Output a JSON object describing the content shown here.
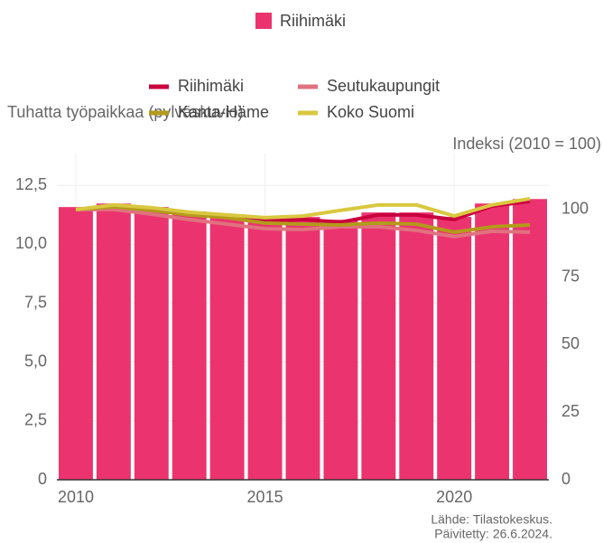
{
  "chart_data": {
    "type": "combo",
    "y_label": "Tuhatta työpaikkaa (pylväskuvio)",
    "y2_label": "Indeksi (2010 = 100)",
    "source": "Lähde: Tilastokeskus.",
    "updated": "Päivitetty: 26.6.2024.",
    "x": [
      2010,
      2011,
      2012,
      2013,
      2014,
      2015,
      2016,
      2017,
      2018,
      2019,
      2020,
      2021,
      2022
    ],
    "xlim": [
      2009.5,
      2022.5
    ],
    "xticks": [
      2010,
      2015,
      2020
    ],
    "ylim": [
      0,
      13.85
    ],
    "yticks": [
      0,
      {
        "value": 2.5,
        "label": "2,5"
      },
      {
        "value": 5,
        "label": "5,0"
      },
      {
        "value": 7.5,
        "label": "7,5"
      },
      {
        "value": 10,
        "label": "10,0"
      },
      {
        "value": 12.5,
        "label": "12,5"
      }
    ],
    "y2lim": [
      0,
      120.7
    ],
    "y2ticks": [
      0,
      25,
      50,
      75,
      100
    ],
    "grid": true,
    "series": [
      {
        "name": "Riihimäki",
        "type": "bar",
        "color": "#eb346f",
        "values": [
          11.58,
          11.73,
          11.58,
          11.39,
          11.27,
          11.08,
          11.16,
          11.04,
          11.35,
          11.35,
          11.16,
          11.73,
          11.92
        ]
      },
      {
        "name": "Riihimäki",
        "type": "line",
        "axis": "y2",
        "color": "#c9003e",
        "values": [
          100,
          101.3,
          100,
          98.3,
          97.3,
          95.7,
          96.3,
          95.3,
          98,
          98,
          96.3,
          101.3,
          103
        ]
      },
      {
        "name": "Seutukaupungit",
        "type": "line",
        "axis": "y2",
        "color": "#e0727f",
        "values": [
          100,
          100,
          98.3,
          96.3,
          94.6,
          92.9,
          92.6,
          93.6,
          93.6,
          92.3,
          90,
          92,
          91.6
        ]
      },
      {
        "name": "Kanta-Häme",
        "type": "line",
        "axis": "y2",
        "color": "#b39a1c",
        "values": [
          100,
          101,
          99.7,
          98,
          97,
          95,
          94.6,
          94.3,
          95,
          94.6,
          91.6,
          93.6,
          94.3
        ]
      },
      {
        "name": "Koko Suomi",
        "type": "line",
        "axis": "y2",
        "color": "#d9c83f",
        "values": [
          100,
          101.7,
          100.7,
          99,
          98,
          97,
          97.6,
          99.7,
          101.7,
          101.7,
          97.6,
          101.7,
          104
        ]
      }
    ]
  }
}
